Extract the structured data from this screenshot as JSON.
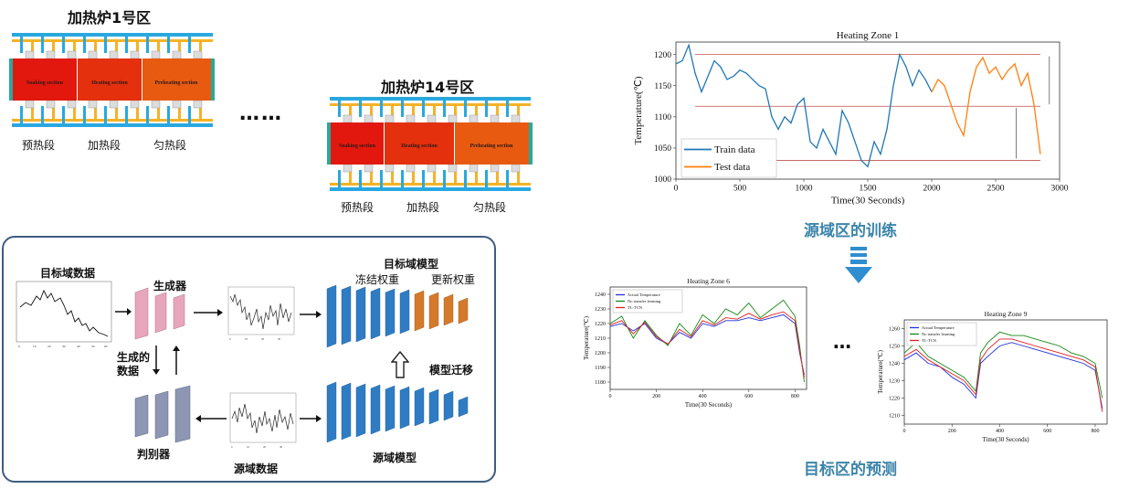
{
  "furnace1": {
    "title": "加热炉1号区",
    "sections": [
      "Soaking section",
      "Heating section",
      "Preheating section"
    ],
    "labels": [
      "预热段",
      "加热段",
      "匀热段"
    ]
  },
  "ellipsis": "……",
  "furnace14": {
    "title": "加热炉14号区",
    "sections": [
      "Soaking section",
      "Heating section",
      "Preheating section"
    ],
    "labels": [
      "预热段",
      "加热段",
      "匀热段"
    ]
  },
  "gan": {
    "target_data": "目标域数据",
    "generator": "生成器",
    "generated_data": "生成的\n数据",
    "discriminator": "判别器",
    "source_data": "源域数据",
    "target_model": "目标域模型",
    "frozen_weights": "冻结权重",
    "updated_weights": "更新权重",
    "model_transfer": "模型迁移",
    "source_model": "源域模型"
  },
  "source_training_title": "源域区的训练",
  "target_prediction_title": "目标区的预测",
  "ellipsis_small": "…",
  "chart_data": [
    {
      "type": "line",
      "title": "Heating Zone 1",
      "xlabel": "Time(30 Seconds)",
      "ylabel": "Temperature(℃)",
      "xlim": [
        0,
        3000
      ],
      "ylim": [
        1000,
        1220
      ],
      "xticks": [
        0,
        500,
        1000,
        1500,
        2000,
        2500,
        3000
      ],
      "yticks": [
        1000,
        1050,
        1100,
        1150,
        1200
      ],
      "legend_position": "bottom-left",
      "reference_lines": [
        1200,
        1117,
        1030
      ],
      "series": [
        {
          "name": "Train data",
          "color": "#1f77b4",
          "x": [
            0,
            50,
            100,
            150,
            200,
            250,
            300,
            350,
            400,
            450,
            500,
            550,
            600,
            650,
            700,
            750,
            800,
            850,
            900,
            950,
            1000,
            1050,
            1100,
            1150,
            1200,
            1250,
            1300,
            1350,
            1400,
            1450,
            1500,
            1550,
            1600,
            1650,
            1700,
            1750,
            1800,
            1850,
            1900,
            1950,
            2000
          ],
          "y": [
            1185,
            1190,
            1215,
            1170,
            1140,
            1165,
            1190,
            1180,
            1160,
            1165,
            1175,
            1170,
            1160,
            1150,
            1145,
            1100,
            1080,
            1100,
            1090,
            1120,
            1130,
            1060,
            1050,
            1080,
            1060,
            1040,
            1110,
            1090,
            1060,
            1030,
            1020,
            1060,
            1040,
            1080,
            1150,
            1200,
            1180,
            1150,
            1175,
            1160,
            1140
          ]
        },
        {
          "name": "Test data",
          "color": "#ff7f0e",
          "x": [
            2000,
            2050,
            2100,
            2150,
            2200,
            2250,
            2300,
            2350,
            2400,
            2450,
            2500,
            2550,
            2600,
            2650,
            2700,
            2750,
            2800,
            2850
          ],
          "y": [
            1140,
            1160,
            1150,
            1120,
            1090,
            1070,
            1140,
            1180,
            1195,
            1170,
            1180,
            1160,
            1175,
            1185,
            1150,
            1170,
            1120,
            1040
          ]
        }
      ]
    },
    {
      "type": "line",
      "title": "Heating Zone 6",
      "xlabel": "Time(30 Seconds)",
      "ylabel": "Temperature(℃)",
      "xlim": [
        0,
        850
      ],
      "ylim": [
        1175,
        1245
      ],
      "xticks": [
        0,
        200,
        400,
        600,
        800
      ],
      "yticks": [
        1180,
        1190,
        1200,
        1210,
        1220,
        1230,
        1240
      ],
      "legend_position": "top-left",
      "series": [
        {
          "name": "Actual Temperature",
          "color": "#2030e0",
          "x": [
            0,
            50,
            100,
            150,
            200,
            250,
            300,
            350,
            400,
            450,
            500,
            550,
            600,
            650,
            700,
            750,
            800,
            820,
            840
          ],
          "y": [
            1218,
            1220,
            1215,
            1220,
            1210,
            1206,
            1214,
            1210,
            1220,
            1218,
            1222,
            1222,
            1224,
            1222,
            1224,
            1226,
            1220,
            1200,
            1185
          ]
        },
        {
          "name": "No transfer learning",
          "color": "#138a13",
          "x": [
            0,
            50,
            100,
            150,
            200,
            250,
            300,
            350,
            400,
            450,
            500,
            550,
            600,
            650,
            700,
            750,
            800,
            820,
            840
          ],
          "y": [
            1220,
            1225,
            1210,
            1222,
            1212,
            1205,
            1220,
            1212,
            1226,
            1220,
            1230,
            1226,
            1234,
            1224,
            1230,
            1236,
            1225,
            1205,
            1180
          ]
        },
        {
          "name": "TL-TCN",
          "color": "#e02020",
          "x": [
            0,
            50,
            100,
            150,
            200,
            250,
            300,
            350,
            400,
            450,
            500,
            550,
            600,
            650,
            700,
            750,
            800,
            820,
            840
          ],
          "y": [
            1219,
            1222,
            1213,
            1221,
            1211,
            1206,
            1216,
            1211,
            1222,
            1219,
            1224,
            1223,
            1227,
            1223,
            1226,
            1228,
            1222,
            1202,
            1183
          ]
        }
      ]
    },
    {
      "type": "line",
      "title": "Heating Zone 9",
      "xlabel": "Time(30 Seconds)",
      "ylabel": "Temperature(℃)",
      "xlim": [
        0,
        850
      ],
      "ylim": [
        1205,
        1265
      ],
      "xticks": [
        0,
        200,
        400,
        600,
        800
      ],
      "yticks": [
        1210,
        1220,
        1230,
        1240,
        1250,
        1260
      ],
      "legend_position": "top-left",
      "series": [
        {
          "name": "Actual Temperature",
          "color": "#2030e0",
          "x": [
            0,
            50,
            100,
            150,
            200,
            250,
            300,
            320,
            350,
            400,
            450,
            500,
            550,
            600,
            650,
            700,
            750,
            800,
            830
          ],
          "y": [
            1242,
            1246,
            1240,
            1238,
            1232,
            1228,
            1220,
            1240,
            1244,
            1250,
            1252,
            1250,
            1248,
            1246,
            1244,
            1242,
            1240,
            1236,
            1214
          ]
        },
        {
          "name": "No transfer learning",
          "color": "#138a13",
          "x": [
            0,
            50,
            100,
            150,
            200,
            250,
            300,
            320,
            350,
            400,
            450,
            500,
            550,
            600,
            650,
            700,
            750,
            800,
            830
          ],
          "y": [
            1246,
            1252,
            1244,
            1240,
            1236,
            1232,
            1224,
            1246,
            1252,
            1258,
            1256,
            1256,
            1254,
            1252,
            1250,
            1246,
            1244,
            1240,
            1220
          ]
        },
        {
          "name": "TL-TCN",
          "color": "#e02020",
          "x": [
            0,
            50,
            100,
            150,
            200,
            250,
            300,
            320,
            350,
            400,
            450,
            500,
            550,
            600,
            650,
            700,
            750,
            800,
            830
          ],
          "y": [
            1244,
            1248,
            1242,
            1238,
            1234,
            1230,
            1222,
            1242,
            1248,
            1254,
            1254,
            1252,
            1250,
            1248,
            1246,
            1244,
            1242,
            1238,
            1212
          ]
        }
      ]
    }
  ]
}
